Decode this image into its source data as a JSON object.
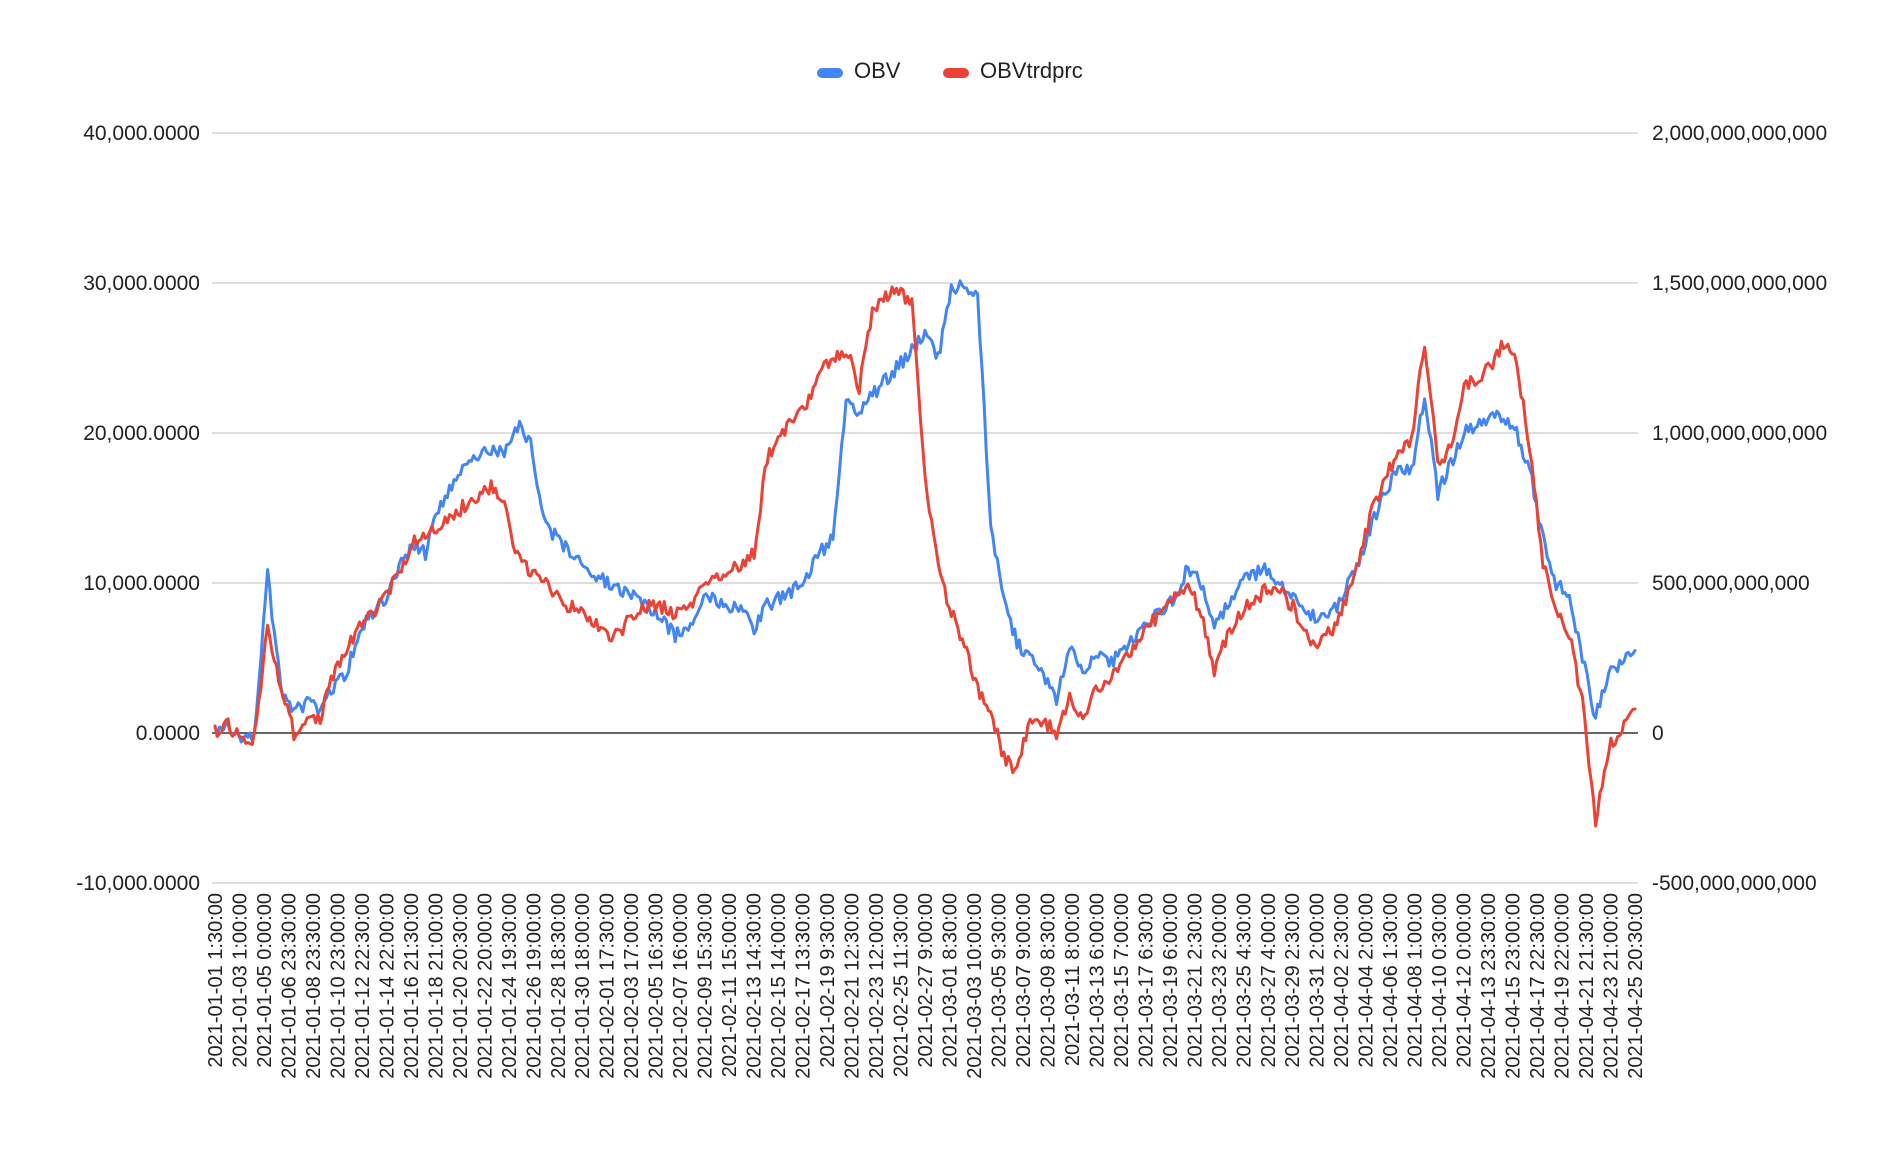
{
  "chart_data": {
    "type": "line",
    "title": "",
    "xlabel": "",
    "ylabel": "",
    "legend_position": "top-center",
    "grid": true,
    "y_left": {
      "range": [
        -10000,
        40000
      ],
      "ticks": [
        -10000,
        0,
        10000,
        20000,
        30000,
        40000
      ],
      "tick_labels": [
        "-10,000.0000",
        "0.0000",
        "10,000.0000",
        "20,000.0000",
        "30,000.0000",
        "40,000.0000"
      ]
    },
    "y_right": {
      "range": [
        -500000000000,
        2000000000000
      ],
      "ticks": [
        -500000000000,
        0,
        500000000000,
        1000000000000,
        1500000000000,
        2000000000000
      ],
      "tick_labels": [
        "-500,000,000,000",
        "0",
        "500,000,000,000",
        "1,000,000,000,000",
        "1,500,000,000,000",
        "2,000,000,000,000"
      ]
    },
    "x_tick_labels": [
      "2021-01-01 1:30:00",
      "2021-01-03 1:00:00",
      "2021-01-05 0:00:00",
      "2021-01-06 23:30:00",
      "2021-01-08 23:30:00",
      "2021-01-10 23:00:00",
      "2021-01-12 22:30:00",
      "2021-01-14 22:00:00",
      "2021-01-16 21:30:00",
      "2021-01-18 21:00:00",
      "2021-01-20 20:30:00",
      "2021-01-22 20:00:00",
      "2021-01-24 19:30:00",
      "2021-01-26 19:00:00",
      "2021-01-28 18:30:00",
      "2021-01-30 18:00:00",
      "2021-02-01 17:30:00",
      "2021-02-03 17:00:00",
      "2021-02-05 16:30:00",
      "2021-02-07 16:00:00",
      "2021-02-09 15:30:00",
      "2021-02-11 15:00:00",
      "2021-02-13 14:30:00",
      "2021-02-15 14:00:00",
      "2021-02-17 13:30:00",
      "2021-02-19 9:30:00",
      "2021-02-21 12:30:00",
      "2021-02-23 12:00:00",
      "2021-02-25 11:30:00",
      "2021-02-27 9:00:00",
      "2021-03-01 8:30:00",
      "2021-03-03 10:00:00",
      "2021-03-05 9:30:00",
      "2021-03-07 9:00:00",
      "2021-03-09 8:30:00",
      "2021-03-11 8:00:00",
      "2021-03-13 6:00:00",
      "2021-03-15 7:00:00",
      "2021-03-17 6:30:00",
      "2021-03-19 6:00:00",
      "2021-03-21 2:30:00",
      "2021-03-23 2:00:00",
      "2021-03-25 4:30:00",
      "2021-03-27 4:00:00",
      "2021-03-29 2:30:00",
      "2021-03-31 2:00:00",
      "2021-04-02 2:30:00",
      "2021-04-04 2:00:00",
      "2021-04-06 1:30:00",
      "2021-04-08 1:00:00",
      "2021-04-10 0:30:00",
      "2021-04-12 0:00:00",
      "2021-04-13 23:30:00",
      "2021-04-15 23:00:00",
      "2021-04-17 22:30:00",
      "2021-04-19 22:00:00",
      "2021-04-21 21:30:00",
      "2021-04-23 21:00:00",
      "2021-04-25 20:30:00"
    ],
    "series": [
      {
        "name": "OBV",
        "axis": "left",
        "color": "#4285f4",
        "values": [
          0,
          600,
          -500,
          -300,
          10500,
          3000,
          1500,
          2000,
          1500,
          3000,
          4000,
          7000,
          8000,
          9000,
          11000,
          12500,
          12000,
          15000,
          16500,
          18000,
          18500,
          19000,
          18500,
          20500,
          19500,
          14000,
          13000,
          12000,
          11500,
          10500,
          10000,
          9500,
          9000,
          8500,
          7500,
          6500,
          7000,
          9000,
          9000,
          8500,
          8500,
          7000,
          8500,
          9000,
          9500,
          10500,
          12000,
          13000,
          22000,
          21500,
          22500,
          23500,
          24500,
          25500,
          26500,
          25000,
          29500,
          30000,
          29000,
          14000,
          9000,
          6000,
          5000,
          4000,
          2000,
          6000,
          4000,
          5500,
          4500,
          5500,
          6500,
          7500,
          8000,
          9000,
          11000,
          10000,
          7000,
          8500,
          10000,
          10500,
          11000,
          10000,
          9000,
          8000,
          7500,
          8000,
          9500,
          11500,
          14000,
          16000,
          17500,
          17500,
          22500,
          16000,
          18000,
          20000,
          20500,
          21000,
          21000,
          20000,
          17500,
          13000,
          10000,
          9000,
          5000,
          1000,
          4000,
          4500,
          5500
        ]
      },
      {
        "name": "OBVtrdprc",
        "axis": "right",
        "color": "#ea4335",
        "values": [
          0,
          25000000000,
          -20000000000,
          -15000000000,
          350000000000,
          150000000000,
          0,
          50000000000,
          50000000000,
          200000000000,
          280000000000,
          350000000000,
          400000000000,
          470000000000,
          520000000000,
          640000000000,
          660000000000,
          690000000000,
          720000000000,
          760000000000,
          780000000000,
          820000000000,
          760000000000,
          590000000000,
          540000000000,
          500000000000,
          460000000000,
          420000000000,
          400000000000,
          360000000000,
          320000000000,
          350000000000,
          400000000000,
          430000000000,
          420000000000,
          400000000000,
          420000000000,
          480000000000,
          520000000000,
          540000000000,
          560000000000,
          600000000000,
          920000000000,
          980000000000,
          1050000000000,
          1100000000000,
          1200000000000,
          1250000000000,
          1280000000000,
          1150000000000,
          1400000000000,
          1450000000000,
          1480000000000,
          1430000000000,
          850000000000,
          550000000000,
          400000000000,
          300000000000,
          150000000000,
          60000000000,
          -80000000000,
          -130000000000,
          50000000000,
          40000000000,
          0,
          120000000000,
          50000000000,
          150000000000,
          180000000000,
          230000000000,
          280000000000,
          360000000000,
          400000000000,
          460000000000,
          500000000000,
          400000000000,
          200000000000,
          330000000000,
          400000000000,
          440000000000,
          480000000000,
          470000000000,
          420000000000,
          320000000000,
          300000000000,
          350000000000,
          450000000000,
          580000000000,
          740000000000,
          850000000000,
          930000000000,
          980000000000,
          1300000000000,
          900000000000,
          950000000000,
          1150000000000,
          1180000000000,
          1220000000000,
          1300000000000,
          1240000000000,
          950000000000,
          570000000000,
          400000000000,
          330000000000,
          100000000000,
          -300000000000,
          -50000000000,
          20000000000,
          80000000000
        ]
      }
    ]
  }
}
